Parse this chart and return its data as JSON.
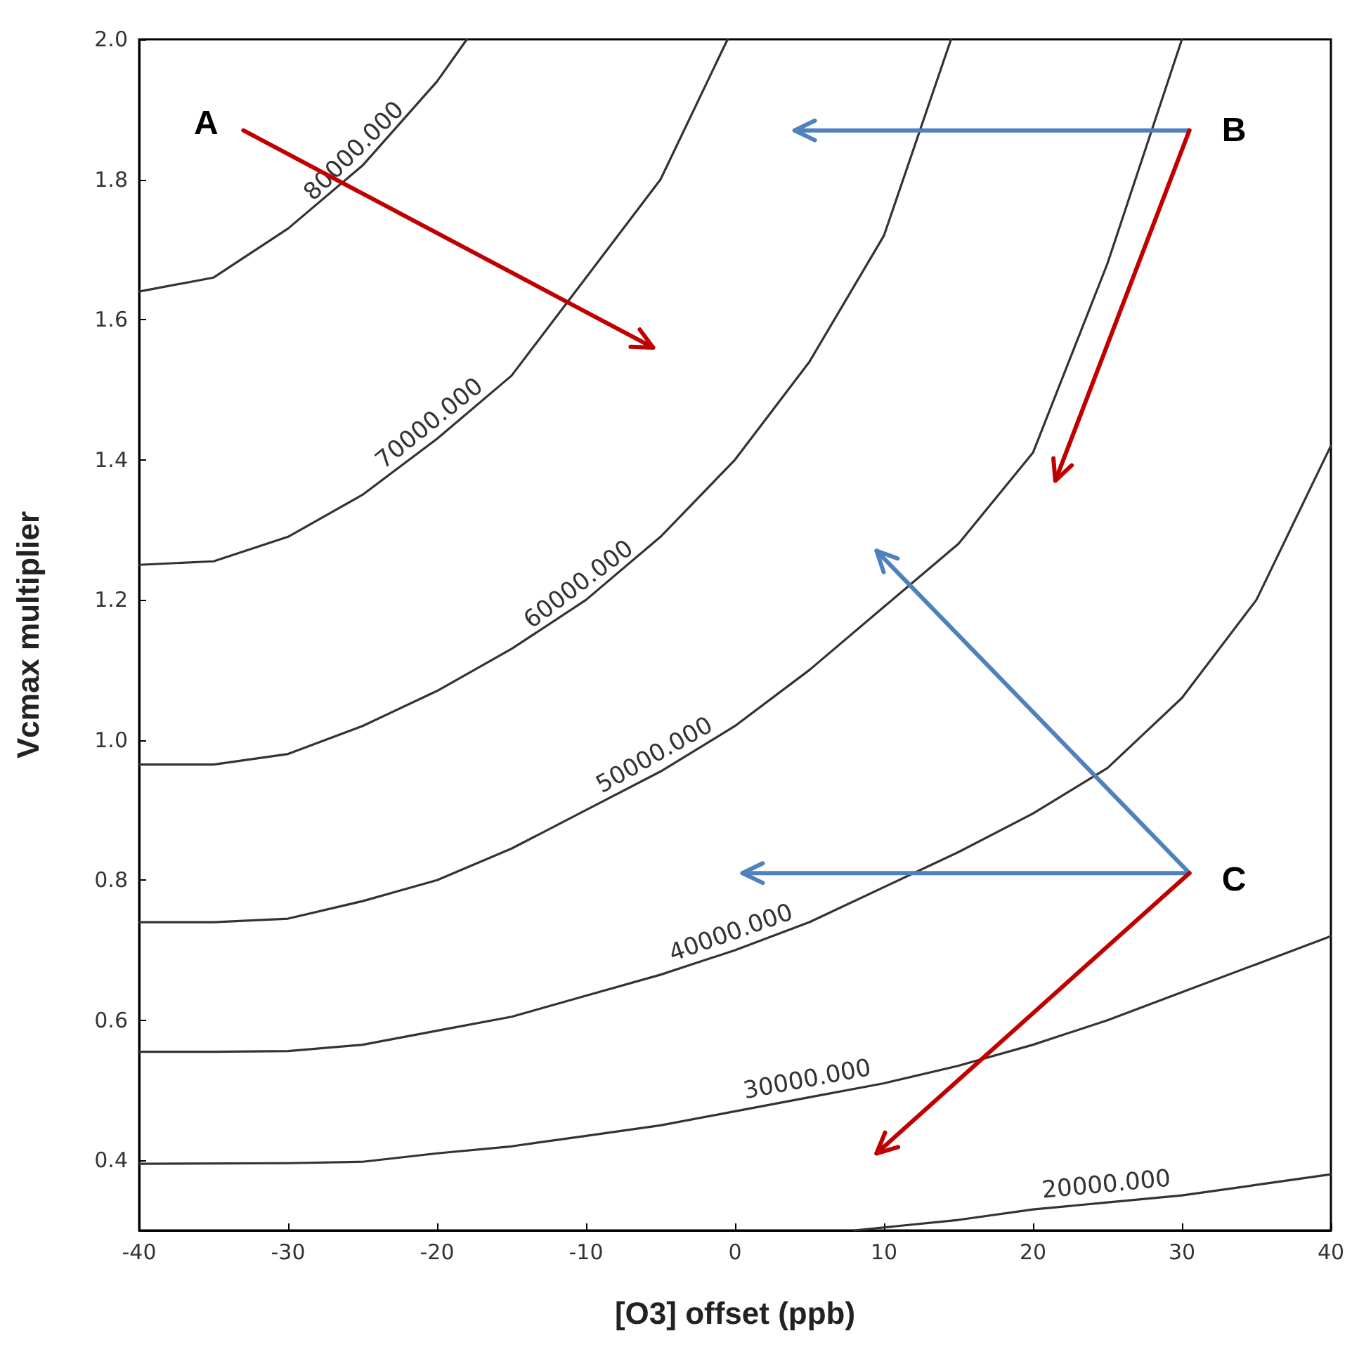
{
  "chart_data": {
    "type": "line",
    "xlabel": "[O3] offset (ppb)",
    "ylabel": "Vcmax multiplier",
    "xlim": [
      -40,
      40
    ],
    "xticks": [
      -40,
      -30,
      -20,
      -10,
      0,
      10,
      20,
      30,
      40
    ],
    "ylim": [
      0.3,
      2.0
    ],
    "yticks": [
      {
        "value": 0.4,
        "label": "0.4"
      },
      {
        "value": 0.6,
        "label": "0.6"
      },
      {
        "value": 0.8,
        "label": "0.8"
      },
      {
        "value": 1.0,
        "label": "1.0"
      },
      {
        "value": 1.2,
        "label": "1.2"
      },
      {
        "value": 1.4,
        "label": "1.4"
      },
      {
        "value": 1.6,
        "label": "1.6"
      },
      {
        "value": 1.8,
        "label": "1.8"
      },
      {
        "value": 2.0,
        "label": "2.0"
      }
    ],
    "grid": false,
    "legend": false,
    "marker": "none",
    "line_style": "solid",
    "series": [
      {
        "name": "80000.000",
        "color": "#333333",
        "x": [
          -40,
          -35,
          -30,
          -25,
          -20,
          -18
        ],
        "values": [
          1.64,
          1.66,
          1.73,
          1.82,
          1.94,
          2.0
        ]
      },
      {
        "name": "70000.000",
        "color": "#333333",
        "x": [
          -40,
          -35,
          -30,
          -25,
          -20,
          -15,
          -10,
          -5,
          -0.5
        ],
        "values": [
          1.25,
          1.255,
          1.29,
          1.35,
          1.43,
          1.52,
          1.66,
          1.8,
          2.0
        ]
      },
      {
        "name": "60000.000",
        "color": "#333333",
        "x": [
          -40,
          -35,
          -30,
          -25,
          -20,
          -15,
          -10,
          -5,
          0,
          5,
          10,
          14.5
        ],
        "values": [
          0.965,
          0.965,
          0.98,
          1.02,
          1.07,
          1.13,
          1.2,
          1.29,
          1.4,
          1.54,
          1.72,
          2.0
        ]
      },
      {
        "name": "50000.000",
        "color": "#333333",
        "x": [
          -40,
          -35,
          -30,
          -25,
          -20,
          -15,
          -10,
          -5,
          0,
          5,
          10,
          15,
          20,
          25,
          30
        ],
        "values": [
          0.74,
          0.74,
          0.745,
          0.77,
          0.8,
          0.845,
          0.9,
          0.955,
          1.02,
          1.1,
          1.19,
          1.28,
          1.41,
          1.68,
          2.0
        ]
      },
      {
        "name": "40000.000",
        "color": "#333333",
        "x": [
          -40,
          -35,
          -30,
          -25,
          -20,
          -15,
          -10,
          -5,
          0,
          5,
          10,
          15,
          20,
          25,
          30,
          35,
          40
        ],
        "values": [
          0.555,
          0.555,
          0.556,
          0.565,
          0.585,
          0.605,
          0.635,
          0.665,
          0.7,
          0.74,
          0.79,
          0.84,
          0.895,
          0.96,
          1.06,
          1.2,
          1.42
        ]
      },
      {
        "name": "30000.000",
        "color": "#333333",
        "x": [
          -40,
          -30,
          -25,
          -20,
          -15,
          -10,
          -5,
          0,
          5,
          10,
          15,
          20,
          25,
          30,
          35,
          40
        ],
        "values": [
          0.395,
          0.396,
          0.398,
          0.41,
          0.42,
          0.435,
          0.45,
          0.47,
          0.49,
          0.51,
          0.535,
          0.565,
          0.6,
          0.64,
          0.68,
          0.72
        ]
      },
      {
        "name": "20000.000",
        "color": "#333333",
        "x": [
          8,
          15,
          20,
          25,
          30,
          35,
          40
        ],
        "values": [
          0.3,
          0.315,
          0.33,
          0.34,
          0.35,
          0.365,
          0.38
        ]
      }
    ],
    "annotations": [
      "A",
      "B",
      "C"
    ]
  }
}
